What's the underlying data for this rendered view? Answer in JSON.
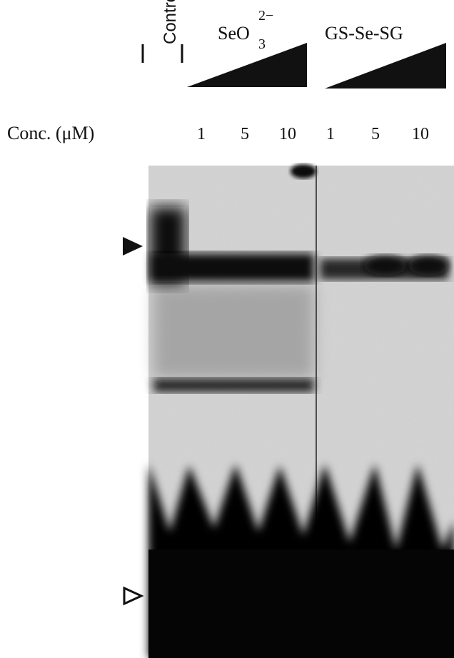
{
  "header": {
    "control": "Control",
    "seo_base": "SeO",
    "seo_sub": "3",
    "seo_sup": "2−",
    "gs": "GS-Se-SG"
  },
  "conc": {
    "label": "Conc. (μM)",
    "lanes": [
      1,
      5,
      10,
      1,
      5,
      10
    ]
  }
}
